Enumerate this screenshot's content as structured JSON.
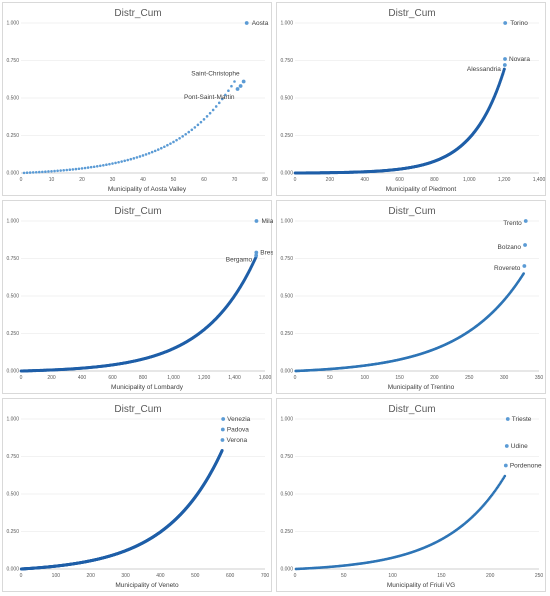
{
  "chart_data": [
    {
      "type": "scatter",
      "title": "Distr_Cum",
      "xlabel": "Municipality of Aosta Valley",
      "ylabel": "",
      "xlim": [
        0,
        80
      ],
      "ylim": [
        0,
        1
      ],
      "xticks": [
        "0",
        "10",
        "20",
        "30",
        "40",
        "50",
        "60",
        "70",
        "80"
      ],
      "yticks": [
        "0.000",
        "0.250",
        "0.500",
        "0.750",
        "1.000"
      ],
      "n": 74,
      "curve_k": 3.6,
      "curve_end": 0.61,
      "points": [
        {
          "x": 71,
          "y": 0.56,
          "label": "Pont-Saint-Martin"
        },
        {
          "x": 72,
          "y": 0.58,
          "label": ""
        },
        {
          "x": 73,
          "y": 0.61,
          "label": "Saint-Christophe"
        },
        {
          "x": 74,
          "y": 1.0,
          "label": "Aosta"
        }
      ],
      "series_color": "#5b9bd5",
      "grid": true
    },
    {
      "type": "scatter",
      "title": "Distr_Cum",
      "xlabel": "Municipality of Piedmont",
      "ylabel": "",
      "xlim": [
        0,
        1400
      ],
      "ylim": [
        0,
        1
      ],
      "xticks": [
        "0",
        "200",
        "400",
        "600",
        "800",
        "1,000",
        "1,200",
        "1,400"
      ],
      "yticks": [
        "0.000",
        "0.250",
        "0.500",
        "0.750",
        "1.000"
      ],
      "n": 1206,
      "curve_k": 6.5,
      "curve_end": 0.7,
      "points": [
        {
          "x": 1204,
          "y": 0.72,
          "label": "Alessandria"
        },
        {
          "x": 1205,
          "y": 0.76,
          "label": "Novara"
        },
        {
          "x": 1206,
          "y": 1.0,
          "label": "Torino"
        }
      ],
      "series_color": "#1f5fa8",
      "grid": true
    },
    {
      "type": "scatter",
      "title": "Distr_Cum",
      "xlabel": "Municipality of Lombardy",
      "ylabel": "",
      "xlim": [
        0,
        1600
      ],
      "ylim": [
        0,
        1
      ],
      "xticks": [
        "0",
        "200",
        "400",
        "600",
        "800",
        "1,000",
        "1,200",
        "1,400",
        "1,600"
      ],
      "yticks": [
        "0.000",
        "0.250",
        "0.500",
        "0.750",
        "1.000"
      ],
      "n": 1544,
      "curve_k": 4.5,
      "curve_end": 0.76,
      "points": [
        {
          "x": 1542,
          "y": 0.77,
          "label": "Bergamo"
        },
        {
          "x": 1543,
          "y": 0.79,
          "label": "Brescia"
        },
        {
          "x": 1544,
          "y": 1.0,
          "label": "Milano"
        }
      ],
      "series_color": "#1f5fa8",
      "grid": true
    },
    {
      "type": "scatter",
      "title": "Distr_Cum",
      "xlabel": "Municipality of Trentino",
      "ylabel": "",
      "xlim": [
        0,
        350
      ],
      "ylim": [
        0,
        1
      ],
      "xticks": [
        "0",
        "50",
        "100",
        "150",
        "200",
        "250",
        "300",
        "350"
      ],
      "yticks": [
        "0.000",
        "0.250",
        "0.500",
        "0.750",
        "1.000"
      ],
      "n": 331,
      "curve_k": 3.6,
      "curve_end": 0.65,
      "points": [
        {
          "x": 329,
          "y": 0.7,
          "label": "Rovereto"
        },
        {
          "x": 330,
          "y": 0.84,
          "label": "Bolzano"
        },
        {
          "x": 331,
          "y": 1.0,
          "label": "Trento"
        }
      ],
      "series_color": "#2e75b6",
      "grid": true
    },
    {
      "type": "scatter",
      "title": "Distr_Cum",
      "xlabel": "Municipality of Veneto",
      "ylabel": "",
      "xlim": [
        0,
        700
      ],
      "ylim": [
        0,
        1
      ],
      "xticks": [
        "0",
        "100",
        "200",
        "300",
        "400",
        "500",
        "600",
        "700"
      ],
      "yticks": [
        "0.000",
        "0.250",
        "0.500",
        "0.750",
        "1.000"
      ],
      "n": 580,
      "curve_k": 3.6,
      "curve_end": 0.79,
      "points": [
        {
          "x": 578,
          "y": 0.86,
          "label": "Verona"
        },
        {
          "x": 579,
          "y": 0.93,
          "label": "Padova"
        },
        {
          "x": 580,
          "y": 1.0,
          "label": "Venezia"
        }
      ],
      "series_color": "#1f5fa8",
      "grid": true
    },
    {
      "type": "scatter",
      "title": "Distr_Cum",
      "xlabel": "Municipality of Friuli VG",
      "ylabel": "",
      "xlim": [
        0,
        250
      ],
      "ylim": [
        0,
        1
      ],
      "xticks": [
        "0",
        "50",
        "100",
        "150",
        "200",
        "250"
      ],
      "yticks": [
        "0.000",
        "0.250",
        "0.500",
        "0.750",
        "1.000"
      ],
      "n": 218,
      "curve_k": 3.6,
      "curve_end": 0.62,
      "points": [
        {
          "x": 216,
          "y": 0.69,
          "label": "Pordenone"
        },
        {
          "x": 217,
          "y": 0.82,
          "label": "Udine"
        },
        {
          "x": 218,
          "y": 1.0,
          "label": "Trieste"
        }
      ],
      "series_color": "#2e75b6",
      "grid": true
    }
  ]
}
